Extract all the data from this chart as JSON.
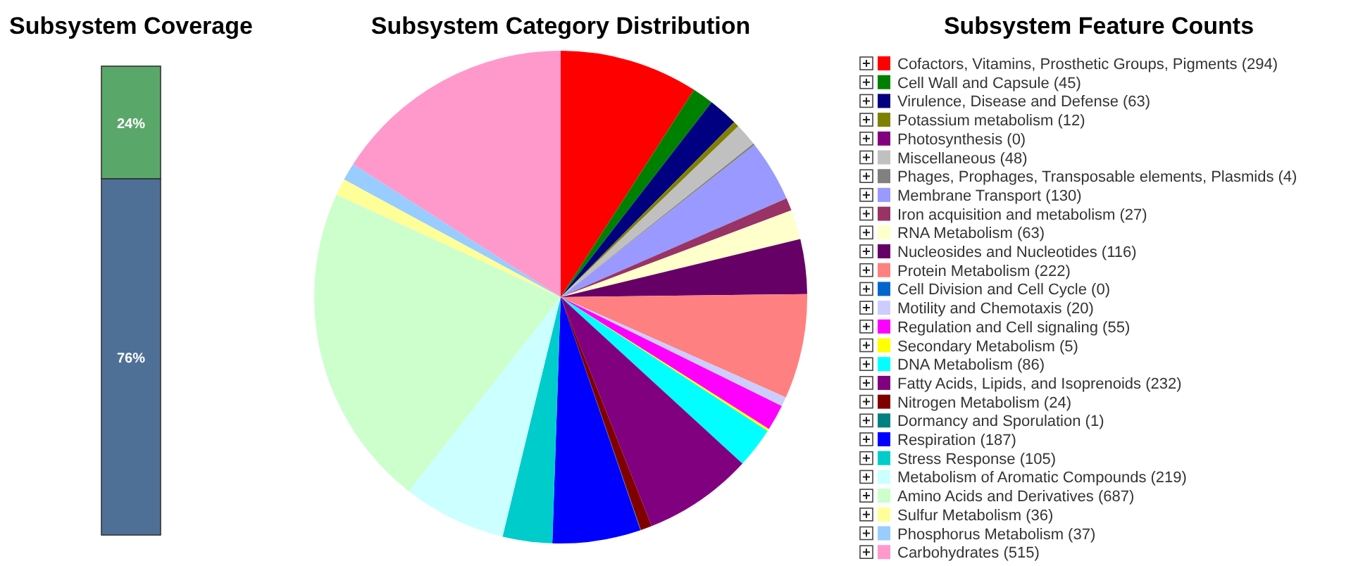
{
  "chart_data": [
    {
      "type": "bar",
      "title": "Subsystem Coverage",
      "stacked": true,
      "categories": [
        null
      ],
      "ylim": [
        0,
        100
      ],
      "tick_labels": false,
      "series": [
        {
          "color": "#4e7097",
          "values": [
            76
          ],
          "value_labels": [
            "76%"
          ]
        },
        {
          "color": "#5aa76a",
          "values": [
            24
          ],
          "value_labels": [
            "24%"
          ]
        }
      ]
    },
    {
      "type": "pie",
      "title": "Subsystem Category Distribution",
      "legend_title": "Subsystem Feature Counts",
      "legend": "right",
      "categories": [
        "Cofactors, Vitamins, Prosthetic Groups, Pigments (294)",
        "Cell Wall and Capsule (45)",
        "Virulence, Disease and Defense (63)",
        "Potassium metabolism (12)",
        "Photosynthesis (0)",
        "Miscellaneous (48)",
        "Phages, Prophages, Transposable elements, Plasmids (4)",
        "Membrane Transport (130)",
        "Iron acquisition and metabolism (27)",
        "RNA Metabolism (63)",
        "Nucleosides and Nucleotides (116)",
        "Protein Metabolism (222)",
        "Cell Division and Cell Cycle (0)",
        "Motility and Chemotaxis (20)",
        "Regulation and Cell signaling (55)",
        "Secondary Metabolism (5)",
        "DNA Metabolism (86)",
        "Fatty Acids, Lipids, and Isoprenoids (232)",
        "Nitrogen Metabolism (24)",
        "Dormancy and Sporulation (1)",
        "Respiration (187)",
        "Stress Response (105)",
        "Metabolism of Aromatic Compounds (219)",
        "Amino Acids and Derivatives (687)",
        "Sulfur Metabolism (36)",
        "Phosphorus Metabolism (37)",
        "Carbohydrates (515)"
      ],
      "values": [
        294,
        45,
        63,
        12,
        0,
        48,
        4,
        130,
        27,
        63,
        116,
        222,
        0,
        20,
        55,
        5,
        86,
        232,
        24,
        1,
        187,
        105,
        219,
        687,
        36,
        37,
        515
      ],
      "colors": [
        "#ff0000",
        "#008000",
        "#000080",
        "#808000",
        "#800080",
        "#c0c0c0",
        "#808080",
        "#9999ff",
        "#993366",
        "#ffffcc",
        "#660066",
        "#ff8080",
        "#0066cc",
        "#ccccff",
        "#ff00ff",
        "#ffff00",
        "#00ffff",
        "#800080",
        "#800000",
        "#008080",
        "#0000ff",
        "#00cccc",
        "#ccffff",
        "#ccffcc",
        "#ffff99",
        "#99ccff",
        "#ff99cc"
      ]
    }
  ]
}
